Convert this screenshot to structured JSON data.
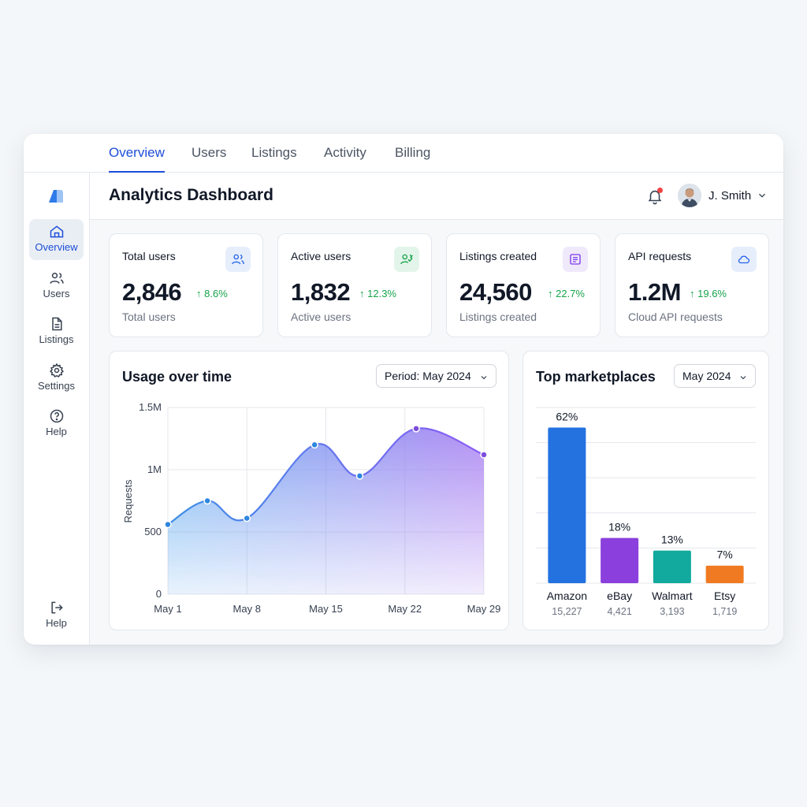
{
  "tabs": [
    {
      "label": "Overview",
      "active": true
    },
    {
      "label": "Users",
      "active": false
    },
    {
      "label": "Listings",
      "active": false
    },
    {
      "label": "Activity",
      "active": false
    },
    {
      "label": "Billing",
      "active": false
    }
  ],
  "sidebar": {
    "items": [
      {
        "label": "Overview",
        "icon": "home-icon",
        "active": true
      },
      {
        "label": "Users",
        "icon": "users-icon",
        "active": false
      },
      {
        "label": "Listings",
        "icon": "document-icon",
        "active": false
      },
      {
        "label": "Settings",
        "icon": "gear-icon",
        "active": false
      },
      {
        "label": "Help",
        "icon": "help-circle-icon",
        "active": false
      }
    ],
    "bottom_item": {
      "label": "Help",
      "icon": "logout-icon"
    }
  },
  "header": {
    "title": "Analytics Dashboard",
    "user_name": "J. Smith"
  },
  "stats": [
    {
      "label": "Total users",
      "value": "2,846",
      "change": "8.6%",
      "sub": "Total users",
      "icon": "users-icon",
      "icon_bg": "#e6eefb",
      "icon_color": "#2563eb"
    },
    {
      "label": "Active users",
      "value": "1,832",
      "change": "12.3%",
      "sub": "Active users",
      "icon": "user-check-icon",
      "icon_bg": "#e3f5ea",
      "icon_color": "#16a34a"
    },
    {
      "label": "Listings created",
      "value": "24,560",
      "change": "22.7%",
      "sub": "Listings created",
      "icon": "list-icon",
      "icon_bg": "#efe9fb",
      "icon_color": "#7c3aed"
    },
    {
      "label": "API requests",
      "value": "1.2M",
      "change": "19.6%",
      "sub": "Cloud API requests",
      "icon": "cloud-icon",
      "icon_bg": "#e6eefb",
      "icon_color": "#2563eb"
    }
  ],
  "usage_panel": {
    "title": "Usage over time",
    "period_label": "Period: May 2024"
  },
  "market_panel": {
    "title": "Top marketplaces",
    "period_label": "May 2024"
  },
  "chart_data": [
    {
      "type": "area",
      "title": "Usage over time",
      "ylabel": "Requests",
      "xlabel": "",
      "x_ticks": [
        "May 1",
        "May 8",
        "May 15",
        "May 22",
        "May 29"
      ],
      "y_ticks": [
        "0",
        "500",
        "1M",
        "1.5M"
      ],
      "ylim": [
        0,
        1.5
      ],
      "x": [
        1,
        4.5,
        8,
        14,
        18,
        23,
        29
      ],
      "values": [
        0.56,
        0.75,
        0.61,
        1.2,
        0.95,
        1.33,
        1.12
      ],
      "grid": true,
      "colors": [
        "#3b8fe6",
        "#8b5cf6"
      ]
    },
    {
      "type": "bar",
      "title": "Top marketplaces",
      "categories": [
        "Amazon",
        "eBay",
        "Walmart",
        "Etsy"
      ],
      "values": [
        62,
        18,
        13,
        7
      ],
      "value_labels": [
        "62%",
        "18%",
        "13%",
        "7%"
      ],
      "counts": [
        "15,227",
        "4,421",
        "3,193",
        "1,719"
      ],
      "ylim": [
        0,
        70
      ],
      "colors": [
        "#2372e0",
        "#8b3fdc",
        "#12a99e",
        "#f07a22"
      ],
      "grid": true
    }
  ]
}
